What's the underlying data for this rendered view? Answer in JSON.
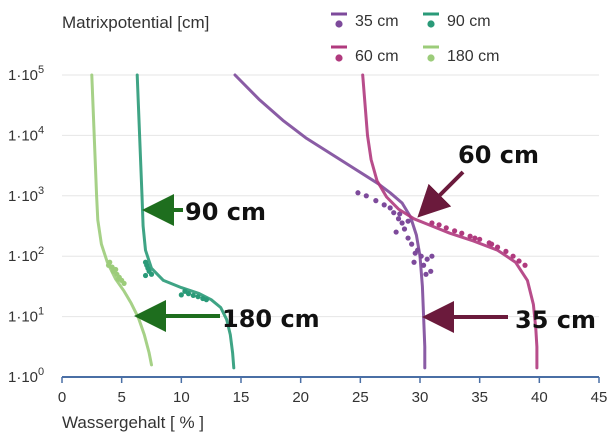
{
  "chart_data": {
    "type": "scatter",
    "ylabel": "Matrixpotential [cm]",
    "xlabel": "Wassergehalt [ % ]",
    "xlim": [
      0,
      45
    ],
    "ylim": [
      0,
      5
    ],
    "y_scale": "log10",
    "x_ticks": [
      0,
      5,
      10,
      15,
      20,
      25,
      30,
      35,
      40,
      45
    ],
    "x_tick_labels": [
      "0",
      "5",
      "10",
      "15",
      "20",
      "25",
      "30",
      "35",
      "40",
      "45"
    ],
    "y_ticks": [
      0,
      1,
      2,
      3,
      4,
      5
    ],
    "y_tick_labels": [
      {
        "base": "1·10",
        "exp": "0"
      },
      {
        "base": "1·10",
        "exp": "1"
      },
      {
        "base": "1·10",
        "exp": "2"
      },
      {
        "base": "1·10",
        "exp": "3"
      },
      {
        "base": "1·10",
        "exp": "4"
      },
      {
        "base": "1·10",
        "exp": "5"
      }
    ],
    "legend_position": "top-right",
    "series": [
      {
        "name": "35 cm",
        "color": "#7d4a9b",
        "fit": [
          [
            14.5,
            5.0
          ],
          [
            16.5,
            4.6
          ],
          [
            18.5,
            4.25
          ],
          [
            20.5,
            3.95
          ],
          [
            22.5,
            3.7
          ],
          [
            24.5,
            3.45
          ],
          [
            26.5,
            3.2
          ],
          [
            27.5,
            3.05
          ],
          [
            28.5,
            2.88
          ],
          [
            29.2,
            2.65
          ],
          [
            29.7,
            2.35
          ],
          [
            30.0,
            2.0
          ],
          [
            30.2,
            1.5
          ],
          [
            30.3,
            1.0
          ],
          [
            30.4,
            0.5
          ],
          [
            30.4,
            0.15
          ]
        ],
        "measured": [
          [
            24.8,
            3.05
          ],
          [
            25.5,
            3.0
          ],
          [
            26.3,
            2.92
          ],
          [
            27.0,
            2.85
          ],
          [
            27.5,
            2.8
          ],
          [
            27.8,
            2.72
          ],
          [
            28.2,
            2.62
          ],
          [
            28.5,
            2.55
          ],
          [
            28.0,
            2.4
          ],
          [
            28.7,
            2.45
          ],
          [
            29.0,
            2.3
          ],
          [
            29.3,
            2.2
          ],
          [
            29.8,
            2.1
          ],
          [
            30.1,
            2.0
          ],
          [
            30.6,
            1.95
          ],
          [
            31.0,
            2.0
          ],
          [
            29.5,
            1.9
          ],
          [
            30.3,
            1.85
          ],
          [
            30.9,
            1.75
          ],
          [
            30.5,
            1.7
          ],
          [
            29.6,
            2.05
          ],
          [
            28.3,
            2.7
          ],
          [
            29.0,
            2.58
          ]
        ]
      },
      {
        "name": "90 cm",
        "color": "#2a9a78",
        "fit": [
          [
            6.3,
            5.0
          ],
          [
            6.4,
            4.5
          ],
          [
            6.5,
            4.0
          ],
          [
            6.6,
            3.5
          ],
          [
            6.7,
            3.0
          ],
          [
            6.8,
            2.5
          ],
          [
            7.0,
            2.1
          ],
          [
            7.5,
            1.8
          ],
          [
            8.5,
            1.6
          ],
          [
            10.0,
            1.48
          ],
          [
            11.5,
            1.38
          ],
          [
            12.5,
            1.28
          ],
          [
            13.3,
            1.15
          ],
          [
            13.8,
            0.95
          ],
          [
            14.1,
            0.7
          ],
          [
            14.3,
            0.4
          ],
          [
            14.4,
            0.15
          ]
        ],
        "measured": [
          [
            7.0,
            1.9
          ],
          [
            7.1,
            1.85
          ],
          [
            7.2,
            1.8
          ],
          [
            7.3,
            1.75
          ],
          [
            7.5,
            1.7
          ],
          [
            7.0,
            1.68
          ],
          [
            10.3,
            1.42
          ],
          [
            10.6,
            1.38
          ],
          [
            11.0,
            1.35
          ],
          [
            11.4,
            1.33
          ],
          [
            11.8,
            1.3
          ],
          [
            12.1,
            1.28
          ],
          [
            10.0,
            1.36
          ]
        ]
      },
      {
        "name": "60 cm",
        "color": "#b03a7e",
        "fit": [
          [
            25.2,
            5.0
          ],
          [
            25.4,
            4.5
          ],
          [
            25.6,
            4.0
          ],
          [
            25.9,
            3.6
          ],
          [
            26.4,
            3.25
          ],
          [
            27.2,
            2.98
          ],
          [
            28.2,
            2.78
          ],
          [
            29.5,
            2.62
          ],
          [
            31.0,
            2.5
          ],
          [
            32.5,
            2.38
          ],
          [
            34.5,
            2.25
          ],
          [
            36.5,
            2.1
          ],
          [
            38.0,
            1.9
          ],
          [
            39.0,
            1.6
          ],
          [
            39.5,
            1.2
          ],
          [
            39.7,
            0.8
          ],
          [
            39.8,
            0.5
          ],
          [
            39.8,
            0.15
          ]
        ],
        "measured": [
          [
            31.0,
            2.55
          ],
          [
            31.6,
            2.52
          ],
          [
            32.2,
            2.47
          ],
          [
            32.9,
            2.42
          ],
          [
            33.5,
            2.38
          ],
          [
            34.2,
            2.33
          ],
          [
            35.0,
            2.28
          ],
          [
            35.8,
            2.22
          ],
          [
            36.5,
            2.15
          ],
          [
            37.2,
            2.08
          ],
          [
            37.8,
            2.0
          ],
          [
            38.3,
            1.92
          ],
          [
            38.8,
            1.85
          ],
          [
            34.6,
            2.3
          ],
          [
            36.0,
            2.2
          ]
        ]
      },
      {
        "name": "180 cm",
        "color": "#9ccc7a",
        "fit": [
          [
            2.5,
            5.0
          ],
          [
            2.6,
            4.5
          ],
          [
            2.7,
            4.0
          ],
          [
            2.8,
            3.5
          ],
          [
            2.9,
            3.0
          ],
          [
            3.0,
            2.6
          ],
          [
            3.3,
            2.2
          ],
          [
            3.8,
            1.9
          ],
          [
            4.5,
            1.62
          ],
          [
            5.2,
            1.42
          ],
          [
            5.8,
            1.22
          ],
          [
            6.4,
            0.98
          ],
          [
            6.9,
            0.7
          ],
          [
            7.3,
            0.4
          ],
          [
            7.5,
            0.2
          ]
        ],
        "measured": [
          [
            4.0,
            1.9
          ],
          [
            4.2,
            1.82
          ],
          [
            4.5,
            1.78
          ],
          [
            4.6,
            1.7
          ],
          [
            4.8,
            1.65
          ],
          [
            5.0,
            1.6
          ],
          [
            4.3,
            1.75
          ],
          [
            5.2,
            1.55
          ],
          [
            4.7,
            1.62
          ],
          [
            3.9,
            1.85
          ]
        ]
      }
    ],
    "annotations": [
      {
        "text": "90 cm",
        "color": "#1e6e1e"
      },
      {
        "text": "180 cm",
        "color": "#1e6e1e"
      },
      {
        "text": "60 cm",
        "color": "#6b1a3c"
      },
      {
        "text": "35 cm",
        "color": "#6b1a3c"
      }
    ]
  }
}
